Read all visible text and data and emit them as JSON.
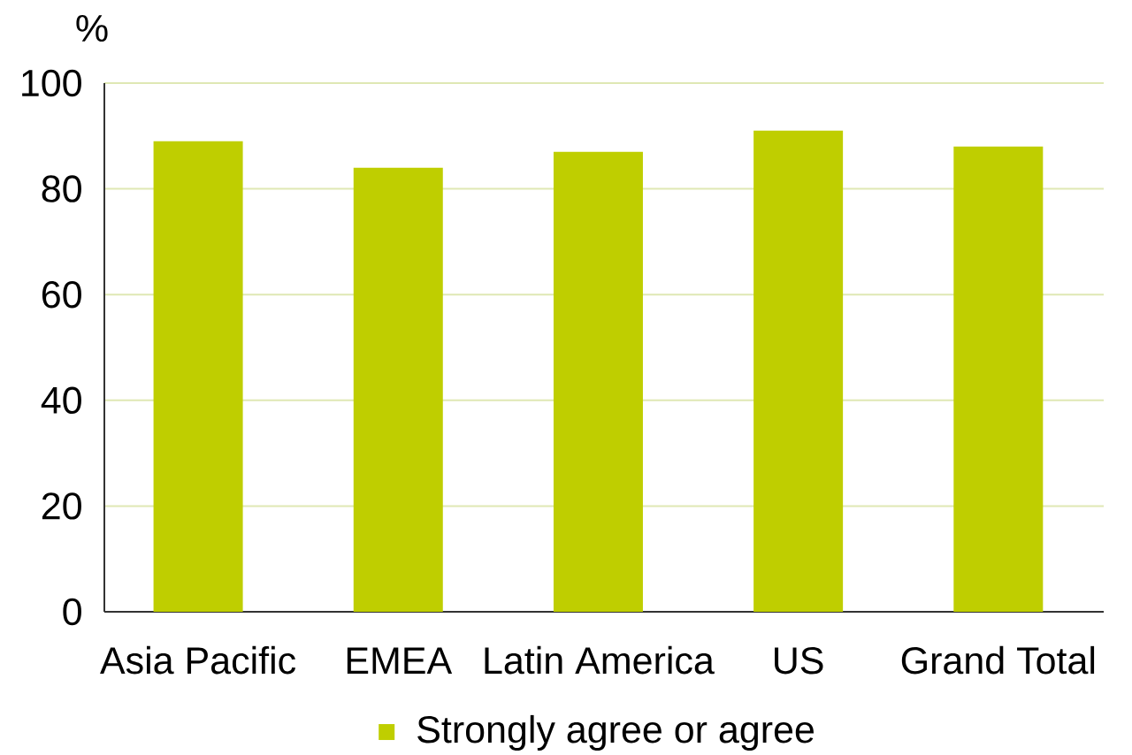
{
  "chart_data": {
    "type": "bar",
    "ylabel": "%",
    "categories": [
      "Asia Pacific",
      "EMEA",
      "Latin America",
      "US",
      "Grand Total"
    ],
    "series": [
      {
        "name": "Strongly agree or agree",
        "color": "#bfce00",
        "values": [
          89,
          84,
          87,
          91,
          88
        ]
      }
    ],
    "ylim": [
      0,
      100
    ],
    "yticks": [
      0,
      20,
      40,
      60,
      80,
      100
    ],
    "grid": "y",
    "legend": "bottom"
  }
}
